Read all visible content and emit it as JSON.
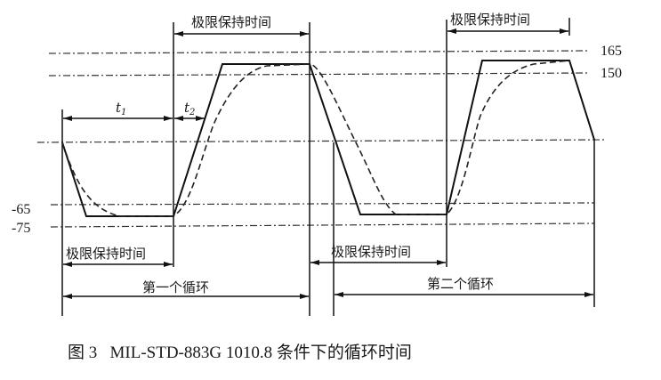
{
  "figure": {
    "levels": {
      "upper_1": "165",
      "upper_2": "150",
      "lower_1": "-65",
      "lower_2": "-75"
    },
    "labels": {
      "hold_top_1": "极限保持时间",
      "hold_top_2": "极限保持时间",
      "hold_bottom_1": "极限保持时间",
      "hold_bottom_2": "极限保持时间",
      "t1": "t",
      "t1_sub": "1",
      "t2": "t",
      "t2_sub": "2",
      "cycle_1": "第一个循环",
      "cycle_2": "第二个循环"
    },
    "caption": "图 3   MIL-STD-883G 1010.8 条件下的循环时间"
  }
}
